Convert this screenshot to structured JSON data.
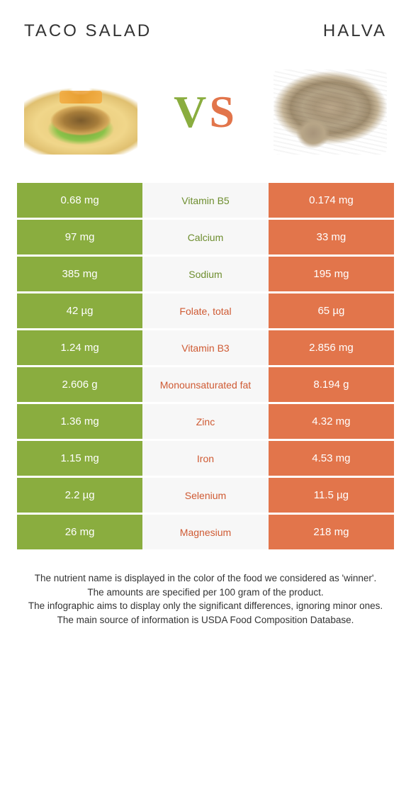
{
  "colors": {
    "green": "#8aad3f",
    "orange": "#e2754b",
    "green_text": "#6e8e2f",
    "orange_text": "#cf5a33",
    "mid_bg": "#f7f7f7",
    "page_bg": "#ffffff"
  },
  "typography": {
    "title_fontsize": 24,
    "title_letterspacing": 3,
    "vs_fontsize": 64,
    "cell_fontsize": 15,
    "mid_fontsize": 14,
    "footer_fontsize": 13.5
  },
  "header": {
    "left_title": "Taco salad",
    "right_title": "Halva",
    "vs_v": "V",
    "vs_s": "S"
  },
  "rows": [
    {
      "left": "0.68 mg",
      "nutrient": "Vitamin B5",
      "right": "0.174 mg",
      "winner": "left"
    },
    {
      "left": "97 mg",
      "nutrient": "Calcium",
      "right": "33 mg",
      "winner": "left"
    },
    {
      "left": "385 mg",
      "nutrient": "Sodium",
      "right": "195 mg",
      "winner": "left"
    },
    {
      "left": "42 µg",
      "nutrient": "Folate, total",
      "right": "65 µg",
      "winner": "right"
    },
    {
      "left": "1.24 mg",
      "nutrient": "Vitamin B3",
      "right": "2.856 mg",
      "winner": "right"
    },
    {
      "left": "2.606 g",
      "nutrient": "Monounsaturated fat",
      "right": "8.194 g",
      "winner": "right"
    },
    {
      "left": "1.36 mg",
      "nutrient": "Zinc",
      "right": "4.32 mg",
      "winner": "right"
    },
    {
      "left": "1.15 mg",
      "nutrient": "Iron",
      "right": "4.53 mg",
      "winner": "right"
    },
    {
      "left": "2.2 µg",
      "nutrient": "Selenium",
      "right": "11.5 µg",
      "winner": "right"
    },
    {
      "left": "26 mg",
      "nutrient": "Magnesium",
      "right": "218 mg",
      "winner": "right"
    }
  ],
  "footer": {
    "line1": "The nutrient name is displayed in the color of the food we considered as 'winner'.",
    "line2": "The amounts are specified per 100 gram of the product.",
    "line3": "The infographic aims to display only the significant differences, ignoring minor ones.",
    "line4": "The main source of information is USDA Food Composition Database."
  }
}
